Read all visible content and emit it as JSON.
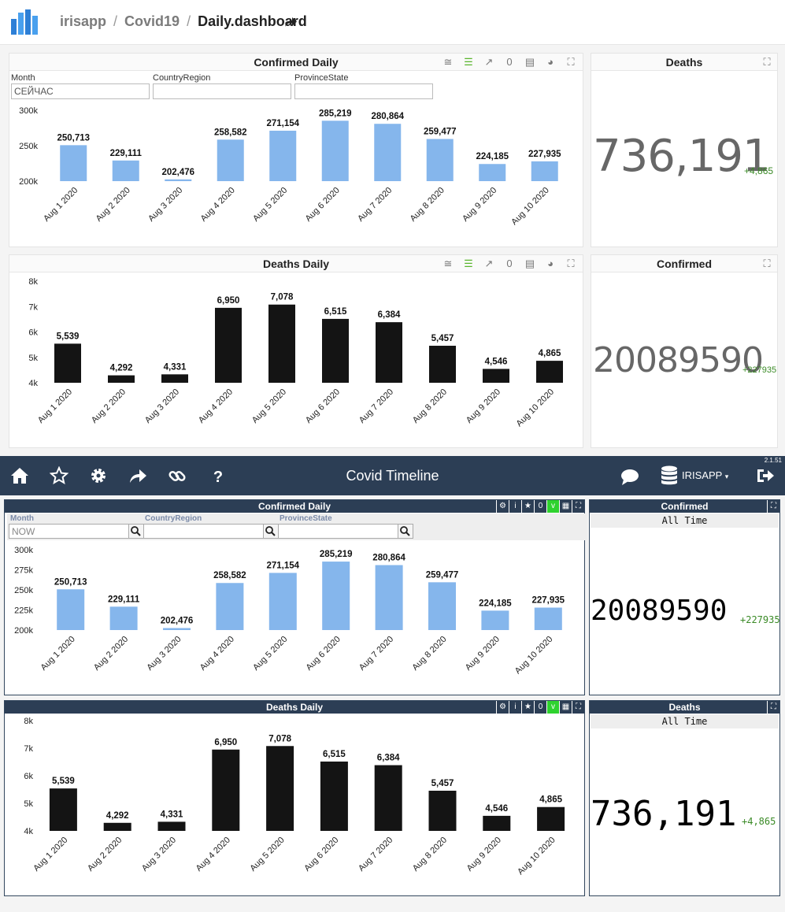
{
  "header": {
    "breadcrumbs": [
      "irisapp",
      "Covid19",
      "Daily.dashboard"
    ]
  },
  "top": {
    "confirmed_daily": {
      "title": "Confirmed Daily",
      "toolbar_count": "0",
      "filters": [
        {
          "label": "Month",
          "value": "СЕЙЧАС"
        },
        {
          "label": "CountryRegion",
          "value": ""
        },
        {
          "label": "ProvinceState",
          "value": ""
        }
      ]
    },
    "deaths_daily": {
      "title": "Deaths Daily",
      "toolbar_count": "0"
    },
    "deaths_kpi": {
      "title": "Deaths",
      "value": "736,191",
      "delta": "+4,865"
    },
    "confirmed_kpi": {
      "title": "Confirmed",
      "value": "20089590",
      "delta": "+227935"
    }
  },
  "app": {
    "title": "Covid Timeline",
    "version": "2.1.51",
    "user": "IRISAPP",
    "icons": [
      "home-icon",
      "star-icon",
      "gear-icon",
      "share-icon",
      "link-icon",
      "help-icon",
      "chat-icon",
      "database-icon",
      "logout-icon"
    ],
    "confirmed_daily": {
      "title": "Confirmed Daily",
      "toolbar_count": "0",
      "toolbar_flag": "v",
      "filters": [
        {
          "label": "Month",
          "value": "NOW"
        },
        {
          "label": "CountryRegion",
          "value": ""
        },
        {
          "label": "ProvinceState",
          "value": ""
        }
      ]
    },
    "deaths_daily": {
      "title": "Deaths Daily",
      "toolbar_count": "0",
      "toolbar_flag": "v"
    },
    "confirmed_kpi": {
      "title": "Confirmed",
      "subtitle": "All Time",
      "value": "20089590",
      "delta": "+227935"
    },
    "deaths_kpi": {
      "title": "Deaths",
      "subtitle": "All Time",
      "value": "736,191",
      "delta": "+4,865"
    }
  },
  "colors": {
    "confirmed_bar": "#85b6ec",
    "deaths_bar": "#141414",
    "nav": "#2c3e55",
    "delta": "#3a8a26",
    "flag_green": "#2fd22f"
  },
  "chart_data": [
    {
      "id": "top-confirmed",
      "type": "bar",
      "title": "Confirmed Daily",
      "categories": [
        "Aug 1 2020",
        "Aug 2 2020",
        "Aug 3 2020",
        "Aug 4 2020",
        "Aug 5 2020",
        "Aug 6 2020",
        "Aug 7 2020",
        "Aug 8 2020",
        "Aug 9 2020",
        "Aug 10 2020"
      ],
      "values": [
        250713,
        229111,
        202476,
        258582,
        271154,
        285219,
        280864,
        259477,
        224185,
        227935
      ],
      "data_labels": [
        "250,713",
        "229,111",
        "202,476",
        "258,582",
        "271,154",
        "285,219",
        "280,864",
        "259,477",
        "224,185",
        "227,935"
      ],
      "ylim": [
        200000,
        300000
      ],
      "yticks": [
        {
          "value": 200000,
          "label": "200k"
        },
        {
          "value": 250000,
          "label": "250k"
        },
        {
          "value": 300000,
          "label": "300k"
        }
      ],
      "grid": false
    },
    {
      "id": "top-deaths",
      "type": "bar",
      "title": "Deaths Daily",
      "categories": [
        "Aug 1 2020",
        "Aug 2 2020",
        "Aug 3 2020",
        "Aug 4 2020",
        "Aug 5 2020",
        "Aug 6 2020",
        "Aug 7 2020",
        "Aug 8 2020",
        "Aug 9 2020",
        "Aug 10 2020"
      ],
      "values": [
        5539,
        4292,
        4331,
        6950,
        7078,
        6515,
        6384,
        5457,
        4546,
        4865
      ],
      "data_labels": [
        "5,539",
        "4,292",
        "4,331",
        "6,950",
        "7,078",
        "6,515",
        "6,384",
        "5,457",
        "4,546",
        "4,865"
      ],
      "ylim": [
        4000,
        8000
      ],
      "yticks": [
        {
          "value": 4000,
          "label": "4k"
        },
        {
          "value": 5000,
          "label": "5k"
        },
        {
          "value": 6000,
          "label": "6k"
        },
        {
          "value": 7000,
          "label": "7k"
        },
        {
          "value": 8000,
          "label": "8k"
        }
      ],
      "grid": false
    },
    {
      "id": "bottom-confirmed",
      "type": "bar",
      "title": "Confirmed Daily",
      "categories": [
        "Aug 1 2020",
        "Aug 2 2020",
        "Aug 3 2020",
        "Aug 4 2020",
        "Aug 5 2020",
        "Aug 6 2020",
        "Aug 7 2020",
        "Aug 8 2020",
        "Aug 9 2020",
        "Aug 10 2020"
      ],
      "values": [
        250713,
        229111,
        202476,
        258582,
        271154,
        285219,
        280864,
        259477,
        224185,
        227935
      ],
      "data_labels": [
        "250,713",
        "229,111",
        "202,476",
        "258,582",
        "271,154",
        "285,219",
        "280,864",
        "259,477",
        "224,185",
        "227,935"
      ],
      "ylim": [
        200000,
        300000
      ],
      "yticks": [
        {
          "value": 200000,
          "label": "200k"
        },
        {
          "value": 225000,
          "label": "225k"
        },
        {
          "value": 250000,
          "label": "250k"
        },
        {
          "value": 275000,
          "label": "275k"
        },
        {
          "value": 300000,
          "label": "300k"
        }
      ],
      "grid": false
    },
    {
      "id": "bottom-deaths",
      "type": "bar",
      "title": "Deaths Daily",
      "categories": [
        "Aug 1 2020",
        "Aug 2 2020",
        "Aug 3 2020",
        "Aug 4 2020",
        "Aug 5 2020",
        "Aug 6 2020",
        "Aug 7 2020",
        "Aug 8 2020",
        "Aug 9 2020",
        "Aug 10 2020"
      ],
      "values": [
        5539,
        4292,
        4331,
        6950,
        7078,
        6515,
        6384,
        5457,
        4546,
        4865
      ],
      "data_labels": [
        "5,539",
        "4,292",
        "4,331",
        "6,950",
        "7,078",
        "6,515",
        "6,384",
        "5,457",
        "4,546",
        "4,865"
      ],
      "ylim": [
        4000,
        8000
      ],
      "yticks": [
        {
          "value": 4000,
          "label": "4k"
        },
        {
          "value": 5000,
          "label": "5k"
        },
        {
          "value": 6000,
          "label": "6k"
        },
        {
          "value": 7000,
          "label": "7k"
        },
        {
          "value": 8000,
          "label": "8k"
        }
      ],
      "grid": false
    }
  ]
}
